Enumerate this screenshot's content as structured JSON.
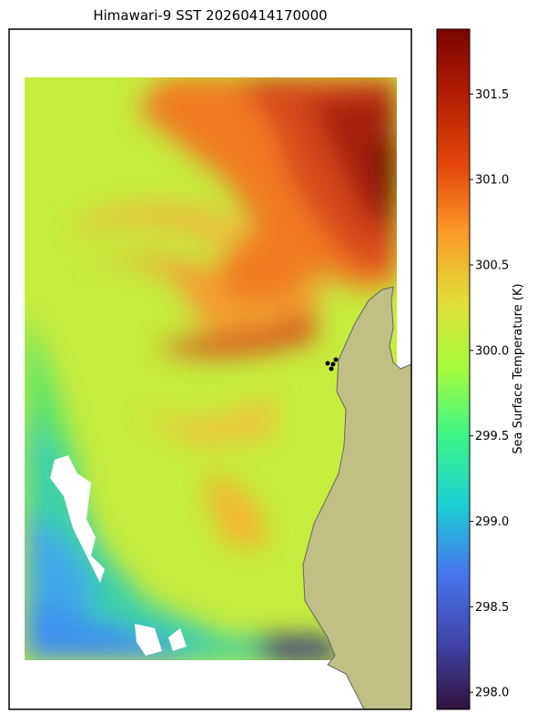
{
  "title": "Himawari-9 SST 20260414170000",
  "colorbar": {
    "label": "Sea Surface Temperature (K)",
    "lim": [
      297.9,
      301.88
    ],
    "ticks": [
      {
        "value": 298,
        "label": "298.0"
      },
      298.5,
      {
        "value": 299,
        "label": "299.0"
      },
      299.5,
      {
        "value": 300,
        "label": "300.0"
      },
      300.5,
      {
        "value": 301,
        "label": "301.0"
      },
      301.5
    ]
  }
}
